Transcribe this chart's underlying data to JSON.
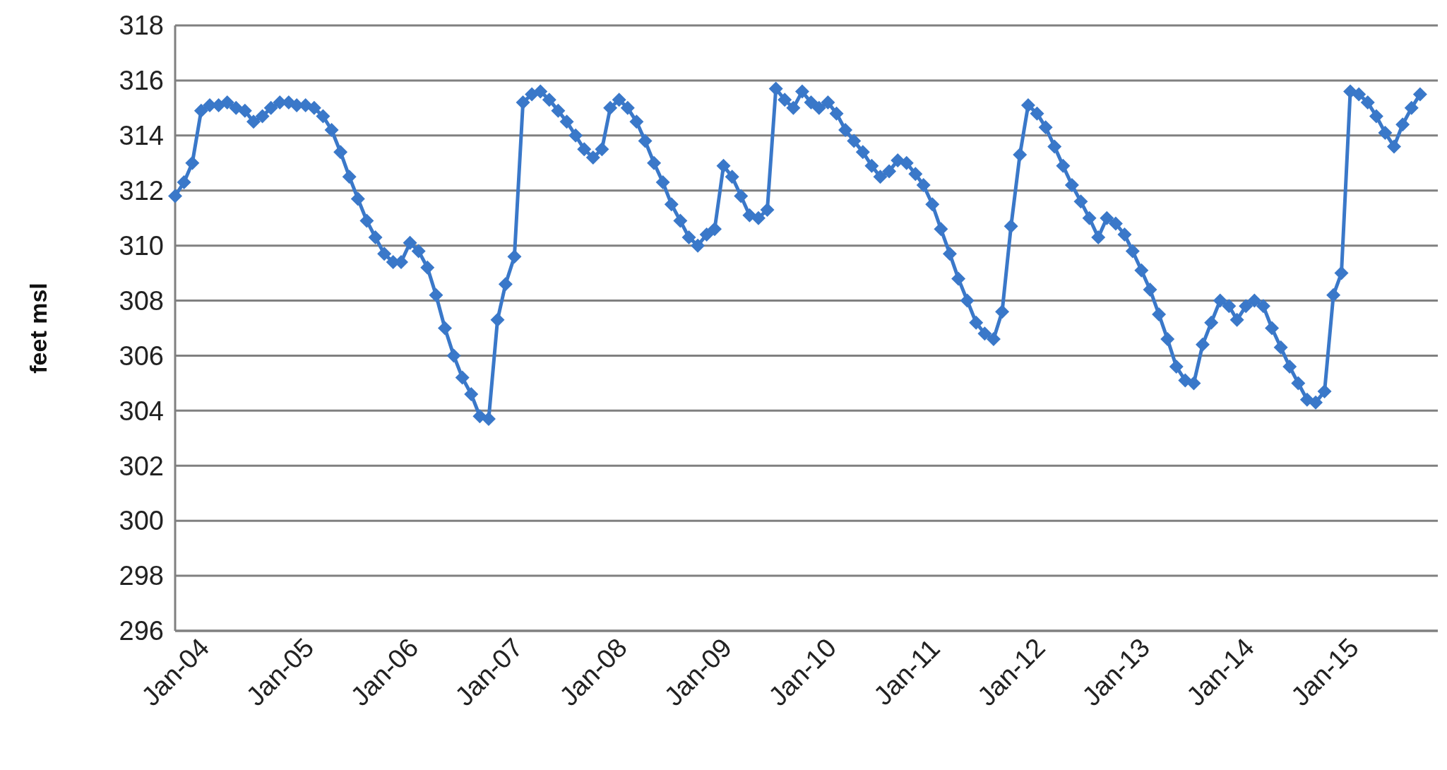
{
  "chart_data": {
    "type": "line",
    "ylabel": "feet msl",
    "x": [
      "2004-01",
      "2004-02",
      "2004-03",
      "2004-04",
      "2004-05",
      "2004-06",
      "2004-07",
      "2004-08",
      "2004-09",
      "2004-10",
      "2004-11",
      "2004-12",
      "2005-01",
      "2005-02",
      "2005-03",
      "2005-04",
      "2005-05",
      "2005-06",
      "2005-07",
      "2005-08",
      "2005-09",
      "2005-10",
      "2005-11",
      "2005-12",
      "2006-01",
      "2006-02",
      "2006-03",
      "2006-04",
      "2006-05",
      "2006-06",
      "2006-07",
      "2006-08",
      "2006-09",
      "2006-10",
      "2006-11",
      "2006-12",
      "2007-01",
      "2007-02",
      "2007-03",
      "2007-04",
      "2007-05",
      "2007-06",
      "2007-07",
      "2007-08",
      "2007-09",
      "2007-10",
      "2007-11",
      "2007-12",
      "2008-01",
      "2008-02",
      "2008-03",
      "2008-04",
      "2008-05",
      "2008-06",
      "2008-07",
      "2008-08",
      "2008-09",
      "2008-10",
      "2008-11",
      "2008-12",
      "2009-01",
      "2009-02",
      "2009-03",
      "2009-04",
      "2009-05",
      "2009-06",
      "2009-07",
      "2009-08",
      "2009-09",
      "2009-10",
      "2009-11",
      "2009-12",
      "2010-01",
      "2010-02",
      "2010-03",
      "2010-04",
      "2010-05",
      "2010-06",
      "2010-07",
      "2010-08",
      "2010-09",
      "2010-10",
      "2010-11",
      "2010-12",
      "2011-01",
      "2011-02",
      "2011-03",
      "2011-04",
      "2011-05",
      "2011-06",
      "2011-07",
      "2011-08",
      "2011-09",
      "2011-10",
      "2011-11",
      "2011-12",
      "2012-01",
      "2012-02",
      "2012-03",
      "2012-04",
      "2012-05",
      "2012-06",
      "2012-07",
      "2012-08",
      "2012-09",
      "2012-10",
      "2012-11",
      "2012-12",
      "2013-01",
      "2013-02",
      "2013-03",
      "2013-04",
      "2013-05",
      "2013-06",
      "2013-07",
      "2013-08",
      "2013-09",
      "2013-10",
      "2013-11",
      "2013-12",
      "2014-01",
      "2014-02",
      "2014-03",
      "2014-04",
      "2014-05",
      "2014-06",
      "2014-07",
      "2014-08",
      "2014-09",
      "2014-10",
      "2014-11",
      "2014-12",
      "2015-01",
      "2015-02",
      "2015-03",
      "2015-04",
      "2015-05",
      "2015-06",
      "2015-07",
      "2015-08",
      "2015-09",
      "2015-10",
      "2015-11",
      "2015-12"
    ],
    "series": [
      {
        "color": "#3a78c9",
        "values": [
          311.8,
          312.3,
          313.0,
          314.9,
          315.1,
          315.1,
          315.2,
          315.0,
          314.9,
          314.5,
          314.7,
          315.0,
          315.2,
          315.2,
          315.1,
          315.1,
          315.0,
          314.7,
          314.2,
          313.4,
          312.5,
          311.7,
          310.9,
          310.3,
          309.7,
          309.4,
          309.4,
          310.1,
          309.8,
          309.2,
          308.2,
          307.0,
          306.0,
          305.2,
          304.6,
          303.8,
          303.7,
          307.3,
          308.6,
          309.6,
          315.2,
          315.5,
          315.6,
          315.3,
          314.9,
          314.5,
          314.0,
          313.5,
          313.2,
          313.5,
          315.0,
          315.3,
          315.0,
          314.5,
          313.8,
          313.0,
          312.3,
          311.5,
          310.9,
          310.3,
          310.0,
          310.4,
          310.6,
          312.9,
          312.5,
          311.8,
          311.1,
          311.0,
          311.3,
          315.7,
          315.3,
          315.0,
          315.6,
          315.2,
          315.0,
          315.2,
          314.8,
          314.2,
          313.8,
          313.4,
          312.9,
          312.5,
          312.7,
          313.1,
          313.0,
          312.6,
          312.2,
          311.5,
          310.6,
          309.7,
          308.8,
          308.0,
          307.2,
          306.8,
          306.6,
          307.6,
          310.7,
          313.3,
          315.1,
          314.8,
          314.3,
          313.6,
          312.9,
          312.2,
          311.6,
          311.0,
          310.3,
          311.0,
          310.8,
          310.4,
          309.8,
          309.1,
          308.4,
          307.5,
          306.6,
          305.6,
          305.1,
          305.0,
          306.4,
          307.2,
          308.0,
          307.8,
          307.3,
          307.8,
          308.0,
          307.8,
          307.0,
          306.3,
          305.6,
          305.0,
          304.4,
          304.3,
          304.7,
          308.2,
          309.0,
          315.6,
          315.5,
          315.2,
          314.7,
          314.1,
          313.6,
          314.4,
          315.0,
          315.5
        ]
      }
    ],
    "xlim": [
      "2004-01",
      "2016-02"
    ],
    "xticks": [
      {
        "value": "2004-01",
        "label": "Jan-04"
      },
      {
        "value": "2005-01",
        "label": "Jan-05"
      },
      {
        "value": "2006-01",
        "label": "Jan-06"
      },
      {
        "value": "2007-01",
        "label": "Jan-07"
      },
      {
        "value": "2008-01",
        "label": "Jan-08"
      },
      {
        "value": "2009-01",
        "label": "Jan-09"
      },
      {
        "value": "2010-01",
        "label": "Jan-10"
      },
      {
        "value": "2011-01",
        "label": "Jan-11"
      },
      {
        "value": "2012-01",
        "label": "Jan-12"
      },
      {
        "value": "2013-01",
        "label": "Jan-13"
      },
      {
        "value": "2014-01",
        "label": "Jan-14"
      },
      {
        "value": "2015-01",
        "label": "Jan-15"
      }
    ],
    "ylim": [
      296,
      318
    ],
    "yticks": [
      296,
      298,
      300,
      302,
      304,
      306,
      308,
      310,
      312,
      314,
      316,
      318
    ],
    "grid": "y",
    "marker": "diamond",
    "line_style": "solid"
  }
}
